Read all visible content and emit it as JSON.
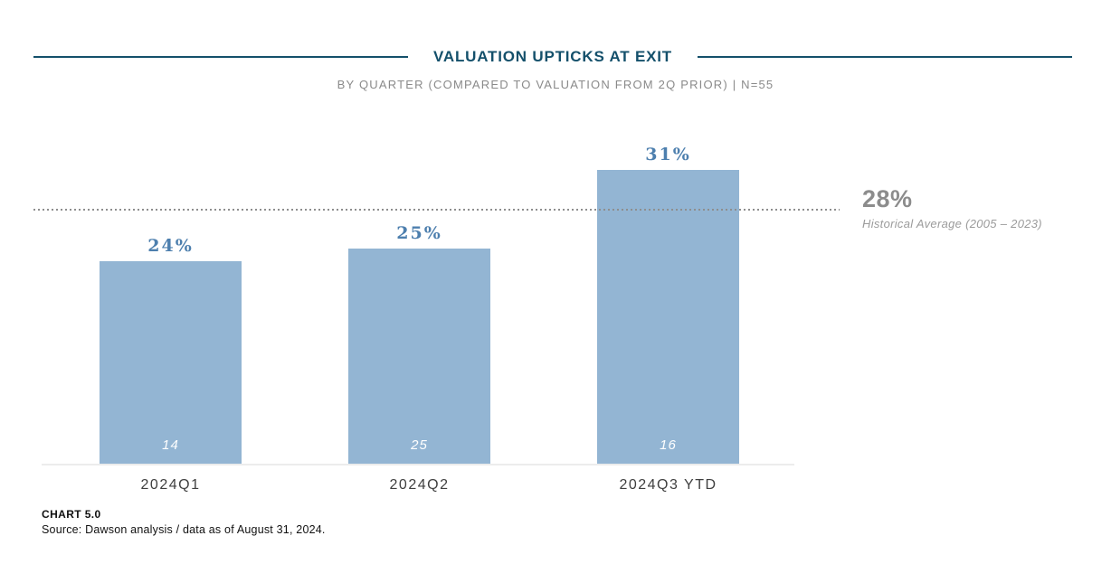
{
  "header": {
    "title": "VALUATION UPTICKS AT EXIT",
    "subtitle": "BY QUARTER (COMPARED TO VALUATION FROM 2Q PRIOR) | N=55"
  },
  "chart_data": {
    "type": "bar",
    "categories": [
      "2024Q1",
      "2024Q2",
      "2024Q3 YTD"
    ],
    "values": [
      24,
      25,
      31
    ],
    "value_labels": [
      "24%",
      "25%",
      "31%"
    ],
    "counts": [
      14,
      25,
      16
    ],
    "reference_line": {
      "value": 28,
      "label": "28%",
      "caption": "Historical Average (2005 – 2023)"
    },
    "ylim": [
      8.5,
      34
    ],
    "grid": false,
    "legend": "none",
    "colors": {
      "bar": "#93b5d3",
      "value_label": "#4d7fae",
      "count_label": "#ffffff",
      "reference_line": "#8e8e8e",
      "title": "#14506b"
    }
  },
  "footer": {
    "chart_number": "CHART 5.0",
    "source": "Source: Dawson analysis / data as of August 31, 2024."
  }
}
